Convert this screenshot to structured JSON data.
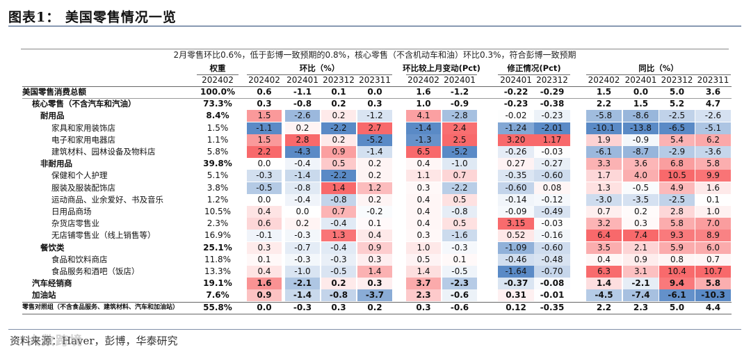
{
  "title": "图表1：  美国零售情况一览",
  "banner": "2月零售环比0.6%，低于彭博一致预期的0.8%，核心零售（不含机动车和油）环比0.3%，符合彭博一致预期",
  "source": "资料来源：Haver，彭博，华泰研究",
  "watermark": "大数跨境",
  "headers": {
    "weight": "权重",
    "weight_sub": "202402",
    "mom": "环比（%）",
    "mom_sub": [
      "202402",
      "202401",
      "202312",
      "202311"
    ],
    "chg": "环比较上月变动(Pct)",
    "chg_sub": [
      "202402",
      "202401"
    ],
    "rev": "修正情况(Pct)",
    "rev_sub": [
      "202401",
      "202312"
    ],
    "yoy": "同比（%）",
    "yoy_sub": [
      "202402",
      "202401",
      "202312",
      "202311"
    ]
  },
  "rows": [
    {
      "label": "美国零售消费总额",
      "indent": 0,
      "bold": true,
      "weight": "100.0%",
      "mom": [
        "0.6",
        "-1.1",
        "0.1",
        "0.0"
      ],
      "chg": [
        "1.6",
        "-1.2"
      ],
      "rev": [
        "-0.22",
        "-0.29"
      ],
      "yoy": [
        "1.5",
        "0.0",
        "5.0",
        "3.6"
      ]
    },
    {
      "label": "核心零售（不含汽车和汽油）",
      "indent": 1,
      "bold": true,
      "weight": "73.3%",
      "mom": [
        "0.3",
        "-0.8",
        "0.2",
        "0.3"
      ],
      "chg": [
        "1.0",
        "-0.9"
      ],
      "rev": [
        "-0.23",
        "-0.38"
      ],
      "yoy": [
        "2.2",
        "1.5",
        "5.2",
        "4.7"
      ]
    },
    {
      "label": "耐用品",
      "indent": 2,
      "bold": true,
      "weight": "8.4%",
      "mom": [
        "1.5",
        "-2.6",
        "0.2",
        "-1.2"
      ],
      "chg": [
        "4.1",
        "-2.8"
      ],
      "rev": [
        "-0.02",
        "-0.23"
      ],
      "yoy": [
        "-5.8",
        "-8.6",
        "-2.5",
        "-2.6"
      ]
    },
    {
      "label": "家具和家用装饰店",
      "indent": 3,
      "bold": false,
      "weight": "1.5%",
      "mom": [
        "-1.1",
        "0.2",
        "-2.2",
        "2.7"
      ],
      "chg": [
        "-1.4",
        "2.4"
      ],
      "rev": [
        "-1.24",
        "-2.01"
      ],
      "yoy": [
        "-10.1",
        "-13.8",
        "-6.5",
        "-5.1"
      ]
    },
    {
      "label": "电子和家用电器店",
      "indent": 3,
      "bold": false,
      "weight": "1.1%",
      "mom": [
        "1.5",
        "2.8",
        "0.2",
        "-5.2"
      ],
      "chg": [
        "-1.3",
        "2.5"
      ],
      "rev": [
        "3.20",
        "1.17"
      ],
      "yoy": [
        "1.9",
        "-0.9",
        "5.4",
        "6.2"
      ]
    },
    {
      "label": "建筑材料、园林设备及物料店",
      "indent": 3,
      "bold": false,
      "weight": "5.8%",
      "mom": [
        "2.2",
        "-4.3",
        "0.9",
        "-1.4"
      ],
      "chg": [
        "6.5",
        "-5.2"
      ],
      "rev": [
        "-0.26",
        "-0.03"
      ],
      "yoy": [
        "-6.1",
        "-8.7",
        "-2.9",
        "-3.6"
      ]
    },
    {
      "label": "非耐用品",
      "indent": 2,
      "bold": true,
      "weight": "39.8%",
      "mom": [
        "0.0",
        "-0.4",
        "0.5",
        "0.2"
      ],
      "chg": [
        "0.4",
        "-1.0"
      ],
      "rev": [
        "0.27",
        "-0.27"
      ],
      "yoy": [
        "3.3",
        "3.6",
        "6.8",
        "5.8"
      ]
    },
    {
      "label": "保健和个人护理",
      "indent": 3,
      "bold": false,
      "weight": "5.1%",
      "mom": [
        "-0.3",
        "-1.4",
        "-2.2",
        "0.2"
      ],
      "chg": [
        "1.1",
        "0.7"
      ],
      "rev": [
        "-0.35",
        "-0.60"
      ],
      "yoy": [
        "1.7",
        "4.0",
        "10.5",
        "9.9"
      ]
    },
    {
      "label": "服装及服装配饰店",
      "indent": 3,
      "bold": false,
      "weight": "3.8%",
      "mom": [
        "-0.5",
        "-0.8",
        "1.4",
        "1.2"
      ],
      "chg": [
        "0.3",
        "-2.2"
      ],
      "rev": [
        "-0.60",
        "0.08"
      ],
      "yoy": [
        "1.3",
        "-0.5",
        "4.9",
        "1.6"
      ]
    },
    {
      "label": "运动商品、业余爱好、书及音乐",
      "indent": 3,
      "bold": false,
      "weight": "1.2%",
      "mom": [
        "0.0",
        "-0.4",
        "-0.8",
        "0.2"
      ],
      "chg": [
        "0.4",
        "0.5"
      ],
      "rev": [
        "-0.14",
        "-0.12"
      ],
      "yoy": [
        "-3.0",
        "-3.5",
        "-2.5",
        "0.1"
      ]
    },
    {
      "label": "日用品商场",
      "indent": 3,
      "bold": false,
      "weight": "10.5%",
      "mom": [
        "0.4",
        "0.0",
        "0.7",
        "-0.2"
      ],
      "chg": [
        "0.4",
        "-0.8"
      ],
      "rev": [
        "-0.09",
        "-0.49"
      ],
      "yoy": [
        "0.7",
        "0.2",
        "2.8",
        "1.0"
      ]
    },
    {
      "label": "杂货店零售业",
      "indent": 3,
      "bold": false,
      "weight": "2.3%",
      "mom": [
        "0.6",
        "0.2",
        "-0.4",
        "0.1"
      ],
      "chg": [
        "0.4",
        "0.5"
      ],
      "rev": [
        "3.15",
        "-0.03"
      ],
      "yoy": [
        "3.2",
        "0.3",
        "5.8",
        "7.0"
      ]
    },
    {
      "label": "无店铺零售业（线上销售等）",
      "indent": 3,
      "bold": false,
      "weight": "16.9%",
      "mom": [
        "-0.1",
        "-0.3",
        "1.3",
        "0.4"
      ],
      "chg": [
        "0.3",
        "-1.6"
      ],
      "rev": [
        "0.52",
        "-0.16"
      ],
      "yoy": [
        "6.4",
        "7.4",
        "9.3",
        "8.9"
      ]
    },
    {
      "label": "餐饮类",
      "indent": 2,
      "bold": true,
      "weight": "25.1%",
      "mom": [
        "0.3",
        "-0.7",
        "-0.4",
        "0.9"
      ],
      "chg": [
        "1.0",
        "-0.3"
      ],
      "rev": [
        "-1.09",
        "-0.60"
      ],
      "yoy": [
        "3.5",
        "2.1",
        "5.9",
        "6.0"
      ]
    },
    {
      "label": "食品和饮料商店",
      "indent": 3,
      "bold": false,
      "weight": "11.8%",
      "mom": [
        "0.1",
        "-0.3",
        "-0.3",
        "0.3"
      ],
      "chg": [
        "0.5",
        "0.1"
      ],
      "rev": [
        "-0.46",
        "-0.48"
      ],
      "yoy": [
        "0.4",
        "0.9",
        "0.8",
        "0.7"
      ]
    },
    {
      "label": "食品服务和酒吧（饭店）",
      "indent": 3,
      "bold": false,
      "weight": "13.3%",
      "mom": [
        "0.4",
        "-1.0",
        "-0.5",
        "1.4"
      ],
      "chg": [
        "1.4",
        "-0.5"
      ],
      "rev": [
        "-1.64",
        "-0.70"
      ],
      "yoy": [
        "6.3",
        "3.1",
        "10.4",
        "10.7"
      ]
    },
    {
      "label": "汽车经销商",
      "indent": 1,
      "bold": true,
      "weight": "19.1%",
      "mom": [
        "1.6",
        "-2.1",
        "0.2",
        "0.3"
      ],
      "chg": [
        "3.7",
        "-2.3"
      ],
      "rev": [
        "-0.37",
        "-0.08"
      ],
      "yoy": [
        "1.4",
        "-2.1",
        "9.4",
        "5.8"
      ]
    },
    {
      "label": "加油站",
      "indent": 1,
      "bold": true,
      "weight": "7.6%",
      "mom": [
        "0.9",
        "-1.4",
        "-0.8",
        "-3.7"
      ],
      "chg": [
        "2.3",
        "-0.6"
      ],
      "rev": [
        "0.31",
        "-0.01"
      ],
      "yoy": [
        "-4.5",
        "-7.4",
        "-6.1",
        "-10.3"
      ]
    },
    {
      "label": "零售对照组（不含食品服务、建筑材料、汽车和加油站）",
      "indent": 0,
      "bold": true,
      "small": true,
      "weight": "55.8%",
      "mom": [
        "0.0",
        "-0.3",
        "0.3",
        "0.2"
      ],
      "chg": [
        "0.3",
        "-0.6"
      ],
      "rev": [
        "0.12",
        "-0.35"
      ],
      "yoy": [
        "2.2",
        "2.3",
        "5.0",
        "4.4"
      ]
    }
  ],
  "colors": {
    "pos_max": "#f8696b",
    "neg_max": "#5a8ac6",
    "neutral": "#ffffff",
    "rule": "#1f3f6e"
  }
}
